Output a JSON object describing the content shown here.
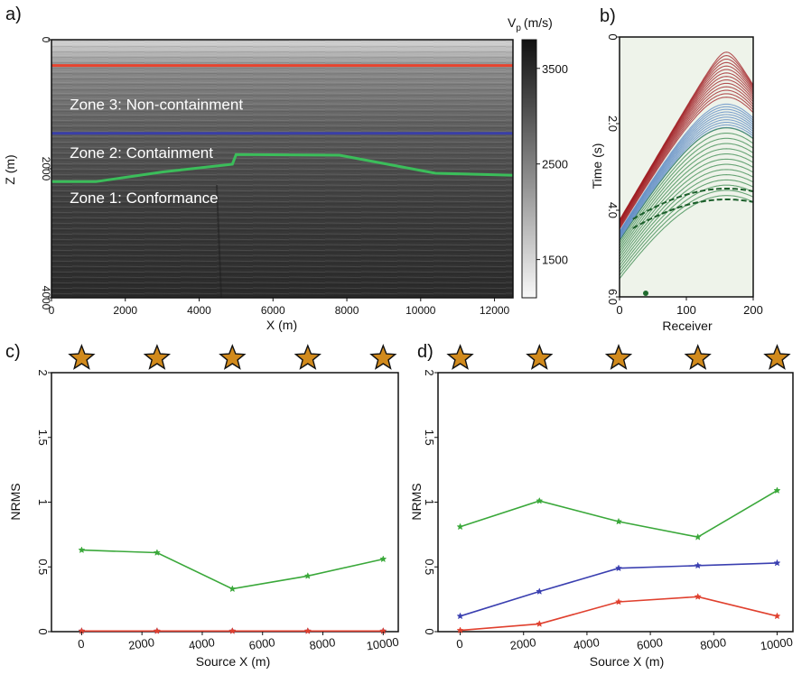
{
  "panels": {
    "a": {
      "label": "a)",
      "xlabel": "X (m)",
      "ylabel": "Z (m)",
      "xlim": [
        0,
        12500
      ],
      "ylim": [
        0,
        4000
      ],
      "xticks": [
        0,
        2000,
        4000,
        6000,
        8000,
        10000,
        12000
      ],
      "yticks": [
        0,
        2000,
        4000
      ],
      "colorbar": {
        "label": "V",
        "label_sub": "p",
        "label_units": "(m/s)",
        "range": [
          1100,
          3800
        ],
        "ticks": [
          3500,
          2500,
          1500
        ]
      },
      "zone_labels": [
        {
          "text": "Zone 3: Non-containment",
          "x": 250,
          "z": 1000
        },
        {
          "text": "Zone 2: Containment",
          "x": 250,
          "z": 1750
        },
        {
          "text": "Zone 1: Conformance",
          "x": 250,
          "z": 2450
        }
      ],
      "horizons": [
        {
          "name": "red",
          "color": "#e8432e",
          "points": [
            [
              0,
              400
            ],
            [
              12500,
              400
            ]
          ]
        },
        {
          "name": "blue",
          "color": "#3a3fa8",
          "points": [
            [
              0,
              1450
            ],
            [
              12500,
              1450
            ]
          ]
        },
        {
          "name": "green",
          "color": "#3bbd5a",
          "points": [
            [
              0,
              2200
            ],
            [
              1200,
              2200
            ],
            [
              3000,
              2050
            ],
            [
              4900,
              1930
            ],
            [
              5000,
              1780
            ],
            [
              7800,
              1790
            ],
            [
              10400,
              2070
            ],
            [
              12500,
              2100
            ]
          ]
        }
      ]
    },
    "b": {
      "label": "b)",
      "xlabel": "Receiver",
      "ylabel": "Time (s)",
      "xlim": [
        0,
        200
      ],
      "ylim": [
        0,
        6.0
      ],
      "xticks": [
        0,
        100,
        200
      ],
      "yticks": [
        0,
        2.0,
        4.0,
        6.0
      ]
    },
    "c": {
      "label": "c)",
      "xlabel": "Source X (m)",
      "ylabel": "NRMS",
      "xlim": [
        -1000,
        10500
      ],
      "ylim": [
        0,
        2.0
      ],
      "xticks": [
        0,
        2000,
        4000,
        6000,
        8000,
        10000
      ],
      "yticks": [
        0.0,
        0.5,
        1.0,
        1.5,
        2.0
      ]
    },
    "d": {
      "label": "d)",
      "xlabel": "Source X (m)",
      "ylabel": "NRMS",
      "xlim": [
        -700,
        10500
      ],
      "ylim": [
        0,
        2.0
      ],
      "xticks": [
        0,
        2000,
        4000,
        6000,
        8000,
        10000
      ],
      "yticks": [
        0.0,
        0.5,
        1.0,
        1.5,
        2.0
      ]
    }
  },
  "chart_data": [
    {
      "panel": "c",
      "type": "line",
      "title": "",
      "xlabel": "Source X (m)",
      "ylabel": "NRMS",
      "x": [
        0,
        2500,
        5000,
        7500,
        10000
      ],
      "star_positions": [
        0,
        2500,
        5000,
        7500,
        10000
      ],
      "series": [
        {
          "name": "green",
          "color": "#3aa83a",
          "values": [
            0.63,
            0.61,
            0.33,
            0.43,
            0.56
          ]
        },
        {
          "name": "blue",
          "color": "#3a3fb0",
          "values": [
            0.005,
            0.005,
            0.005,
            0.005,
            0.005
          ]
        },
        {
          "name": "red",
          "color": "#e0402e",
          "values": [
            0.005,
            0.005,
            0.005,
            0.005,
            0.005
          ]
        }
      ],
      "xlim": [
        -1000,
        10500
      ],
      "ylim": [
        0,
        2.0
      ]
    },
    {
      "panel": "d",
      "type": "line",
      "title": "",
      "xlabel": "Source X (m)",
      "ylabel": "NRMS",
      "x": [
        0,
        2500,
        5000,
        7500,
        10000
      ],
      "star_positions": [
        0,
        2500,
        5000,
        7500,
        10000
      ],
      "series": [
        {
          "name": "green",
          "color": "#3aa83a",
          "values": [
            0.81,
            1.01,
            0.85,
            0.73,
            1.09
          ]
        },
        {
          "name": "blue",
          "color": "#3a3fb0",
          "values": [
            0.12,
            0.31,
            0.49,
            0.51,
            0.53
          ]
        },
        {
          "name": "red",
          "color": "#e0402e",
          "values": [
            0.01,
            0.06,
            0.23,
            0.27,
            0.12
          ]
        }
      ],
      "xlim": [
        -700,
        10500
      ],
      "ylim": [
        0,
        2.0
      ]
    }
  ]
}
